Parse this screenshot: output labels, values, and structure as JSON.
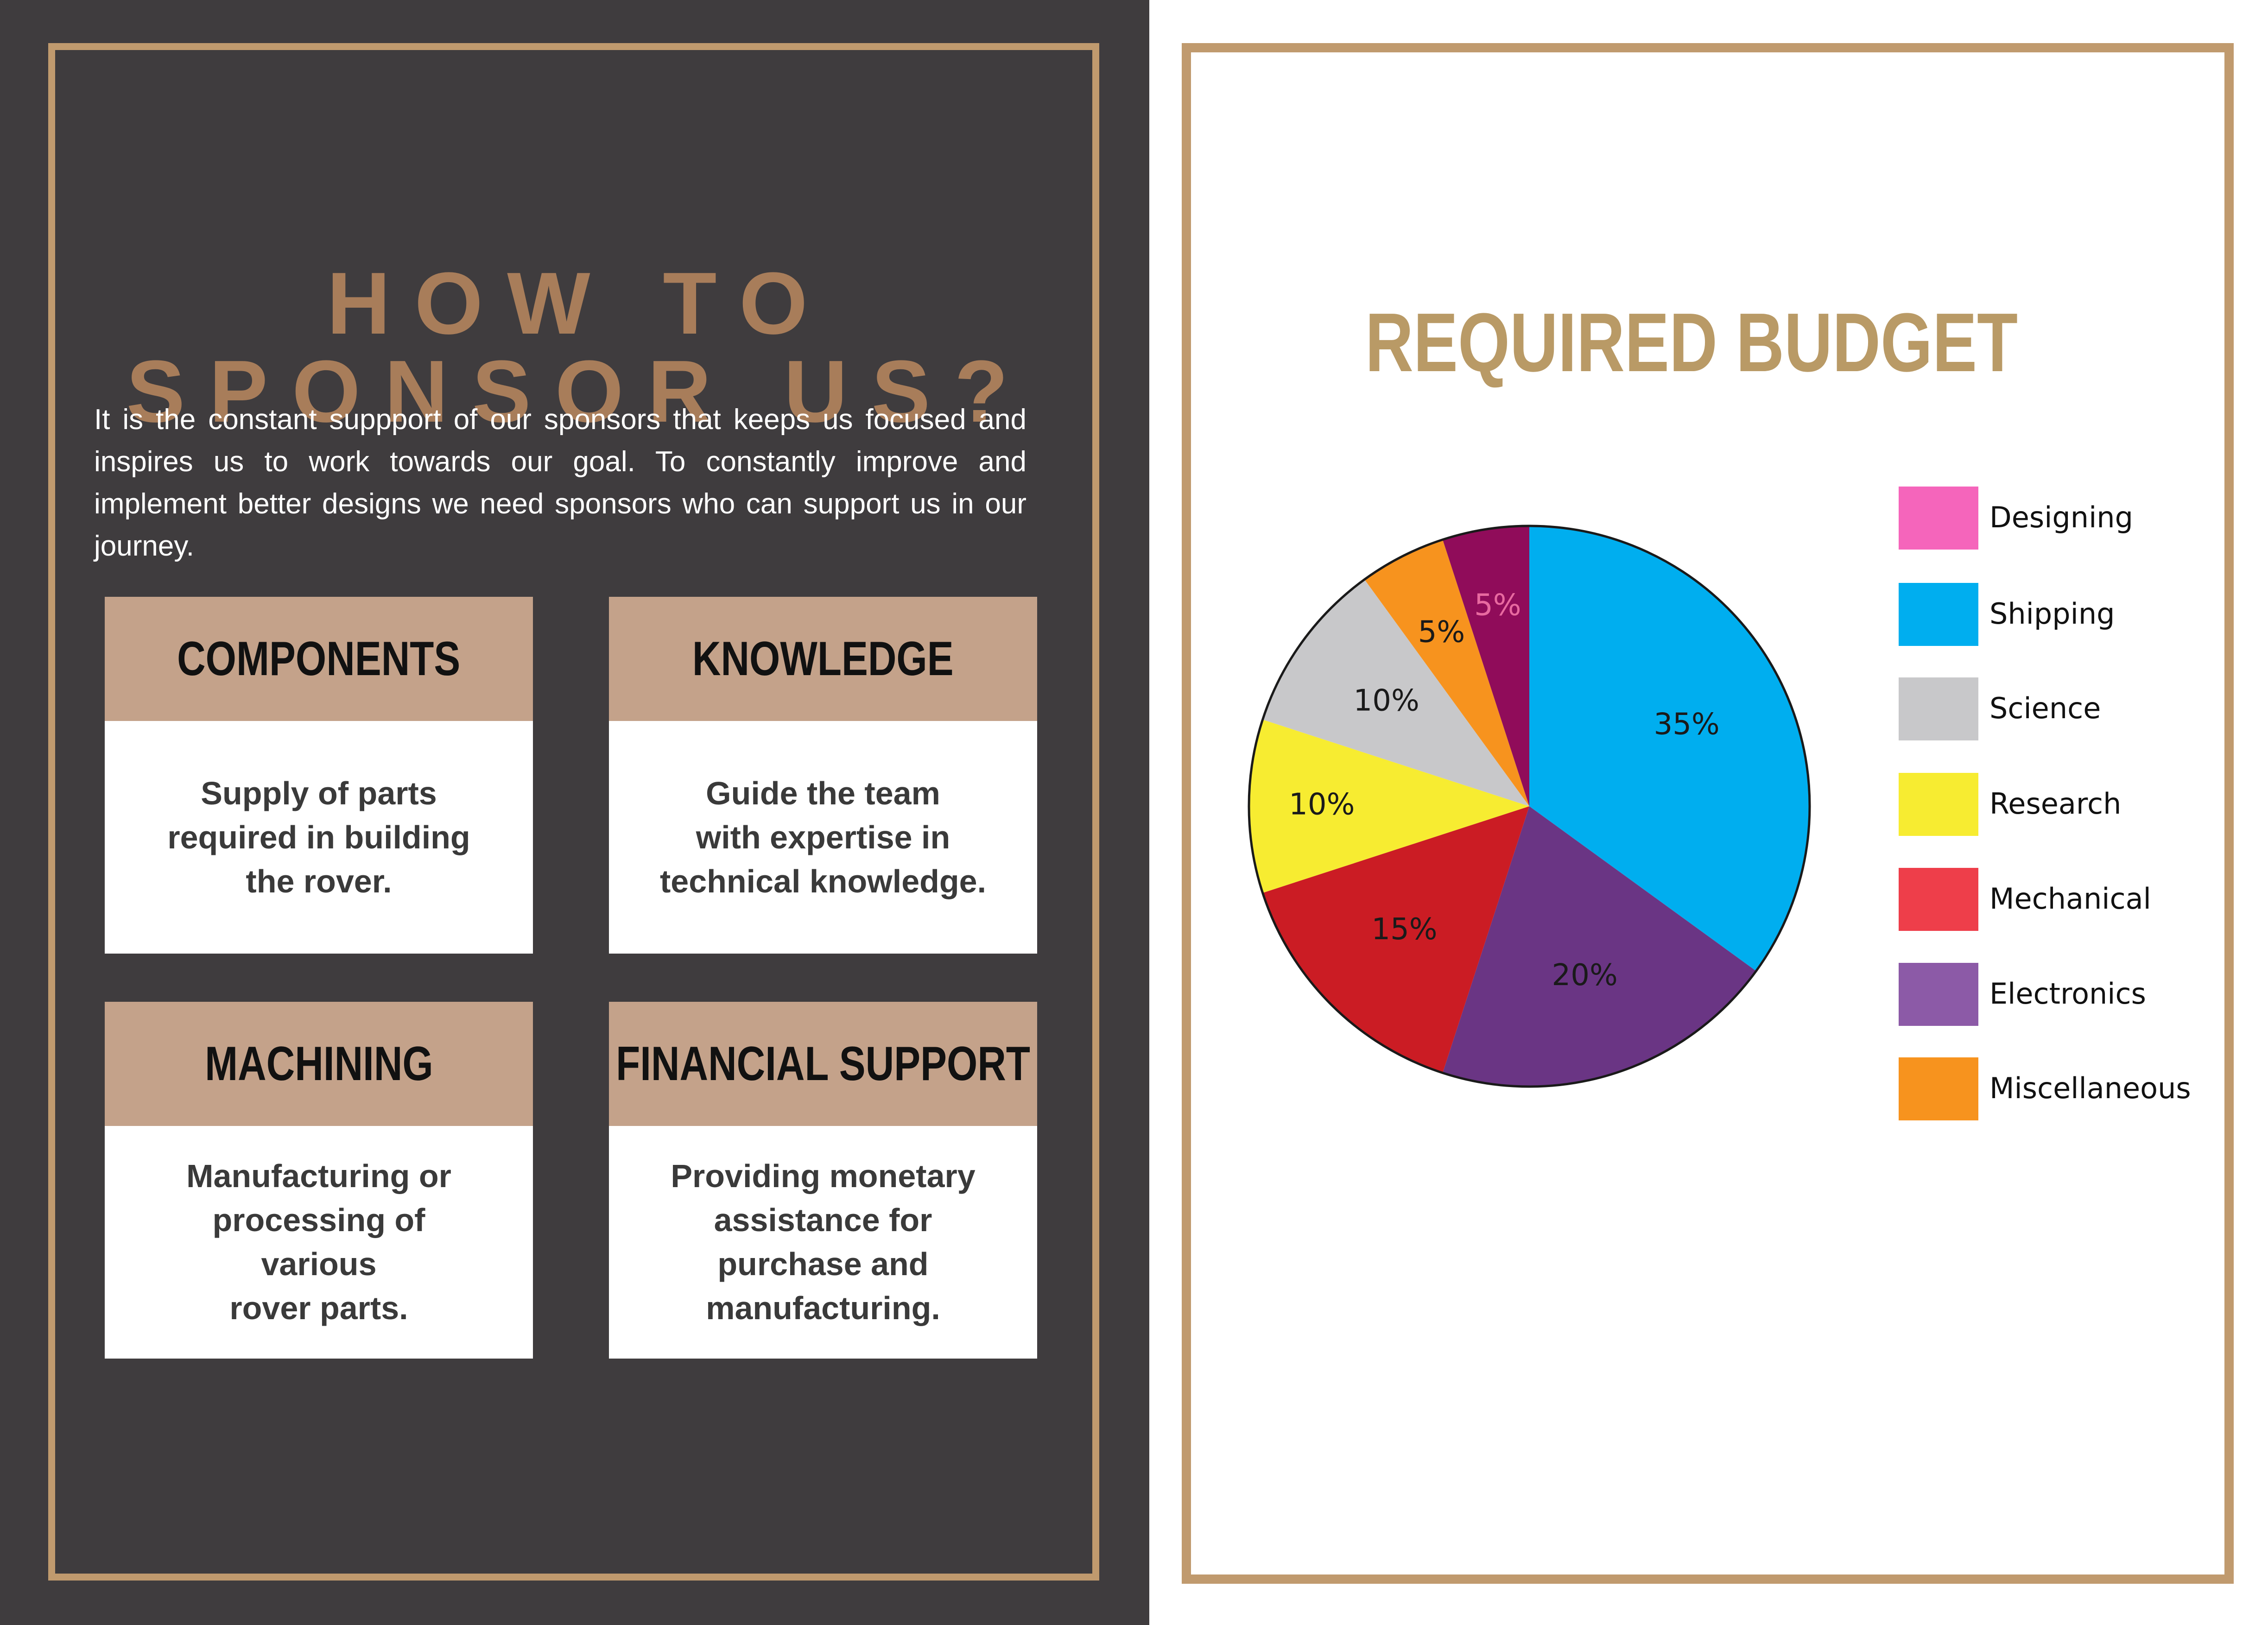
{
  "sponsor": {
    "title": "HOW TO SPONSOR US?",
    "intro": "It is the constant suppport of our sponsors that keeps us focused and inspires us to work towards our goal. To constantly improve and implement better designs we need sponsors who can support us in our journey.",
    "cards": [
      {
        "heading": "COMPONENTS",
        "text": "Supply of parts\nrequired in building\nthe rover."
      },
      {
        "heading": "KNOWLEDGE",
        "text": "Guide the team\nwith expertise in\ntechnical knowledge."
      },
      {
        "heading": "MACHINING",
        "text": "Manufacturing or\nprocessing of various\nrover parts."
      },
      {
        "heading": "FINANCIAL SUPPORT",
        "text": "Providing monetary\nassistance  for\npurchase and\nmanufacturing."
      }
    ]
  },
  "chart_data": {
    "type": "pie",
    "title": "REQUIRED BUDGET",
    "legend_position": "right",
    "slices": [
      {
        "label": "Shipping",
        "value": 35,
        "display": "35%",
        "color": "#00aeef"
      },
      {
        "label": "Electronics",
        "value": 20,
        "display": "20%",
        "color": "#6a3584"
      },
      {
        "label": "Mechanical",
        "value": 15,
        "display": "15%",
        "color": "#cb1c24"
      },
      {
        "label": "Research",
        "value": 10,
        "display": "10%",
        "color": "#f7ec31"
      },
      {
        "label": "Science",
        "value": 10,
        "display": "10%",
        "color": "#c8c8ca"
      },
      {
        "label": "Miscellaneous",
        "value": 5,
        "display": "5%",
        "color": "#f7931e"
      },
      {
        "label": "Designing",
        "value": 5,
        "display": "5%",
        "color": "#900c5a"
      }
    ],
    "legend": [
      {
        "label": "Designing",
        "color": "#f565bb"
      },
      {
        "label": "Shipping",
        "color": "#00aeef"
      },
      {
        "label": "Science",
        "color": "#c8c8ca"
      },
      {
        "label": "Research",
        "color": "#f7ec31"
      },
      {
        "label": "Mechanical",
        "color": "#ee3e4a"
      },
      {
        "label": "Electronics",
        "color": "#8c5aa7"
      },
      {
        "label": "Miscellaneous",
        "color": "#f7931e"
      }
    ]
  }
}
